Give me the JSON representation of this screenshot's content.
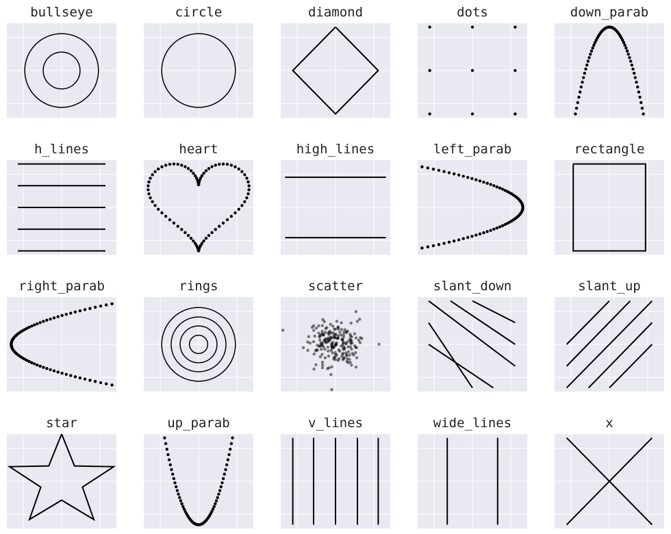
{
  "figure": {
    "panel_background": "#e9e9f1",
    "grid_color": "#ffffff",
    "mark_color": "#000000"
  },
  "chart_data": [
    {
      "type": "line",
      "title": "bullseye",
      "grid": true,
      "xlim": [
        0,
        100
      ],
      "ylim": [
        0,
        100
      ],
      "series": [
        {
          "kind": "circle",
          "cx": 50,
          "cy": 50,
          "r": 39
        },
        {
          "kind": "circle",
          "cx": 50,
          "cy": 50,
          "r": 19.5
        }
      ]
    },
    {
      "type": "line",
      "title": "circle",
      "grid": true,
      "xlim": [
        0,
        100
      ],
      "ylim": [
        0,
        100
      ],
      "series": [
        {
          "kind": "circle",
          "cx": 50,
          "cy": 50,
          "r": 39
        }
      ]
    },
    {
      "type": "line",
      "title": "diamond",
      "grid": true,
      "xlim": [
        0,
        100
      ],
      "ylim": [
        0,
        100
      ],
      "series": [
        {
          "kind": "polyline",
          "points": [
            [
              50,
              96
            ],
            [
              89,
              50
            ],
            [
              50,
              4
            ],
            [
              11,
              50
            ],
            [
              50,
              96
            ]
          ]
        }
      ]
    },
    {
      "type": "scatter",
      "title": "dots",
      "grid": true,
      "xlim": [
        0,
        100
      ],
      "ylim": [
        0,
        100
      ],
      "points": [
        [
          11,
          96
        ],
        [
          50,
          96
        ],
        [
          89,
          96
        ],
        [
          11,
          50
        ],
        [
          50,
          50
        ],
        [
          89,
          50
        ],
        [
          11,
          4
        ],
        [
          50,
          4
        ],
        [
          89,
          4
        ]
      ]
    },
    {
      "type": "scatter",
      "title": "down_parab",
      "grid": true,
      "xlim": [
        0,
        100
      ],
      "ylim": [
        0,
        100
      ],
      "curve": {
        "kind": "down_parabola",
        "x_from": 19,
        "x_to": 81,
        "vertex": [
          50,
          96
        ],
        "end_y": 4,
        "n": 60
      }
    },
    {
      "type": "line",
      "title": "h_lines",
      "grid": true,
      "xlim": [
        0,
        100
      ],
      "ylim": [
        0,
        100
      ],
      "series": [
        {
          "kind": "polyline",
          "points": [
            [
              10,
              96
            ],
            [
              90,
              96
            ]
          ]
        },
        {
          "kind": "polyline",
          "points": [
            [
              10,
              73
            ],
            [
              90,
              73
            ]
          ]
        },
        {
          "kind": "polyline",
          "points": [
            [
              10,
              50
            ],
            [
              90,
              50
            ]
          ]
        },
        {
          "kind": "polyline",
          "points": [
            [
              10,
              27
            ],
            [
              90,
              27
            ]
          ]
        },
        {
          "kind": "polyline",
          "points": [
            [
              10,
              4
            ],
            [
              90,
              4
            ]
          ]
        }
      ]
    },
    {
      "type": "scatter",
      "title": "heart",
      "grid": true,
      "xlim": [
        0,
        100
      ],
      "ylim": [
        0,
        100
      ],
      "curve": {
        "kind": "heart",
        "n": 90
      }
    },
    {
      "type": "line",
      "title": "high_lines",
      "grid": true,
      "xlim": [
        0,
        100
      ],
      "ylim": [
        0,
        100
      ],
      "series": [
        {
          "kind": "polyline",
          "points": [
            [
              4,
              82
            ],
            [
              96,
              82
            ]
          ]
        },
        {
          "kind": "polyline",
          "points": [
            [
              4,
              18
            ],
            [
              96,
              18
            ]
          ]
        }
      ]
    },
    {
      "type": "scatter",
      "title": "left_parab",
      "grid": true,
      "xlim": [
        0,
        100
      ],
      "ylim": [
        0,
        100
      ],
      "curve": {
        "kind": "left_parabola",
        "y_from": 7,
        "y_to": 93,
        "vertex": [
          96,
          50
        ],
        "end_x": 4,
        "n": 70
      }
    },
    {
      "type": "line",
      "title": "rectangle",
      "grid": true,
      "xlim": [
        0,
        100
      ],
      "ylim": [
        0,
        100
      ],
      "series": [
        {
          "kind": "polyline",
          "points": [
            [
              17,
              96
            ],
            [
              83,
              96
            ],
            [
              83,
              4
            ],
            [
              17,
              4
            ],
            [
              17,
              96
            ]
          ]
        }
      ]
    },
    {
      "type": "scatter",
      "title": "right_parab",
      "grid": true,
      "xlim": [
        0,
        100
      ],
      "ylim": [
        0,
        100
      ],
      "curve": {
        "kind": "right_parabola",
        "y_from": 7,
        "y_to": 93,
        "vertex": [
          4,
          50
        ],
        "end_x": 96,
        "n": 70
      }
    },
    {
      "type": "line",
      "title": "rings",
      "grid": true,
      "xlim": [
        0,
        100
      ],
      "ylim": [
        0,
        100
      ],
      "series": [
        {
          "kind": "circle",
          "cx": 50,
          "cy": 50,
          "r": 39
        },
        {
          "kind": "circle",
          "cx": 50,
          "cy": 50,
          "r": 29
        },
        {
          "kind": "circle",
          "cx": 50,
          "cy": 50,
          "r": 19.5
        },
        {
          "kind": "circle",
          "cx": 50,
          "cy": 50,
          "r": 9.7
        }
      ]
    },
    {
      "type": "scatter",
      "title": "scatter",
      "grid": true,
      "xlim": [
        0,
        100
      ],
      "ylim": [
        0,
        100
      ],
      "random": {
        "n": 200,
        "cx": 50,
        "cy": 50,
        "sd": 12,
        "seed": 7
      }
    },
    {
      "type": "line",
      "title": "slant_down",
      "grid": true,
      "xlim": [
        0,
        100
      ],
      "ylim": [
        0,
        100
      ],
      "series": [
        {
          "kind": "polyline",
          "points": [
            [
              10,
              96
            ],
            [
              89,
              27
            ]
          ]
        },
        {
          "kind": "polyline",
          "points": [
            [
              30,
              96
            ],
            [
              89,
              50
            ]
          ]
        },
        {
          "kind": "polyline",
          "points": [
            [
              50,
              96
            ],
            [
              89,
              73
            ]
          ]
        },
        {
          "kind": "polyline",
          "points": [
            [
              10,
              73
            ],
            [
              50,
              4
            ]
          ]
        },
        {
          "kind": "polyline",
          "points": [
            [
              10,
              50
            ],
            [
              69,
              4
            ]
          ]
        }
      ]
    },
    {
      "type": "line",
      "title": "slant_up",
      "grid": true,
      "xlim": [
        0,
        100
      ],
      "ylim": [
        0,
        100
      ],
      "series": [
        {
          "kind": "polyline",
          "points": [
            [
              11,
              50
            ],
            [
              50,
              96
            ]
          ]
        },
        {
          "kind": "polyline",
          "points": [
            [
              11,
              27
            ],
            [
              69,
              96
            ]
          ]
        },
        {
          "kind": "polyline",
          "points": [
            [
              11,
              4
            ],
            [
              89,
              96
            ]
          ]
        },
        {
          "kind": "polyline",
          "points": [
            [
              31,
              4
            ],
            [
              89,
              73
            ]
          ]
        },
        {
          "kind": "polyline",
          "points": [
            [
              50,
              4
            ],
            [
              89,
              50
            ]
          ]
        }
      ]
    },
    {
      "type": "line",
      "title": "star",
      "grid": true,
      "xlim": [
        0,
        100
      ],
      "ylim": [
        0,
        100
      ],
      "series": [
        {
          "kind": "star",
          "cx": 50,
          "cy": 50,
          "r_outer": 50,
          "r_inner": 20
        }
      ]
    },
    {
      "type": "scatter",
      "title": "up_parab",
      "grid": true,
      "xlim": [
        0,
        100
      ],
      "ylim": [
        0,
        100
      ],
      "curve": {
        "kind": "up_parabola",
        "x_from": 19,
        "x_to": 81,
        "vertex": [
          50,
          4
        ],
        "end_y": 96,
        "n": 60
      }
    },
    {
      "type": "line",
      "title": "v_lines",
      "grid": true,
      "xlim": [
        0,
        100
      ],
      "ylim": [
        0,
        100
      ],
      "series": [
        {
          "kind": "polyline",
          "points": [
            [
              11,
              96
            ],
            [
              11,
              4
            ]
          ]
        },
        {
          "kind": "polyline",
          "points": [
            [
              30,
              96
            ],
            [
              30,
              4
            ]
          ]
        },
        {
          "kind": "polyline",
          "points": [
            [
              50,
              96
            ],
            [
              50,
              4
            ]
          ]
        },
        {
          "kind": "polyline",
          "points": [
            [
              70,
              96
            ],
            [
              70,
              4
            ]
          ]
        },
        {
          "kind": "polyline",
          "points": [
            [
              89,
              96
            ],
            [
              89,
              4
            ]
          ]
        }
      ]
    },
    {
      "type": "line",
      "title": "wide_lines",
      "grid": true,
      "xlim": [
        0,
        100
      ],
      "ylim": [
        0,
        100
      ],
      "series": [
        {
          "kind": "polyline",
          "points": [
            [
              27,
              96
            ],
            [
              27,
              4
            ]
          ]
        },
        {
          "kind": "polyline",
          "points": [
            [
              73,
              96
            ],
            [
              73,
              4
            ]
          ]
        }
      ]
    },
    {
      "type": "line",
      "title": "x",
      "grid": true,
      "xlim": [
        0,
        100
      ],
      "ylim": [
        0,
        100
      ],
      "series": [
        {
          "kind": "polyline",
          "points": [
            [
              11,
              96
            ],
            [
              89,
              4
            ]
          ]
        },
        {
          "kind": "polyline",
          "points": [
            [
              11,
              4
            ],
            [
              89,
              96
            ]
          ]
        }
      ]
    }
  ]
}
